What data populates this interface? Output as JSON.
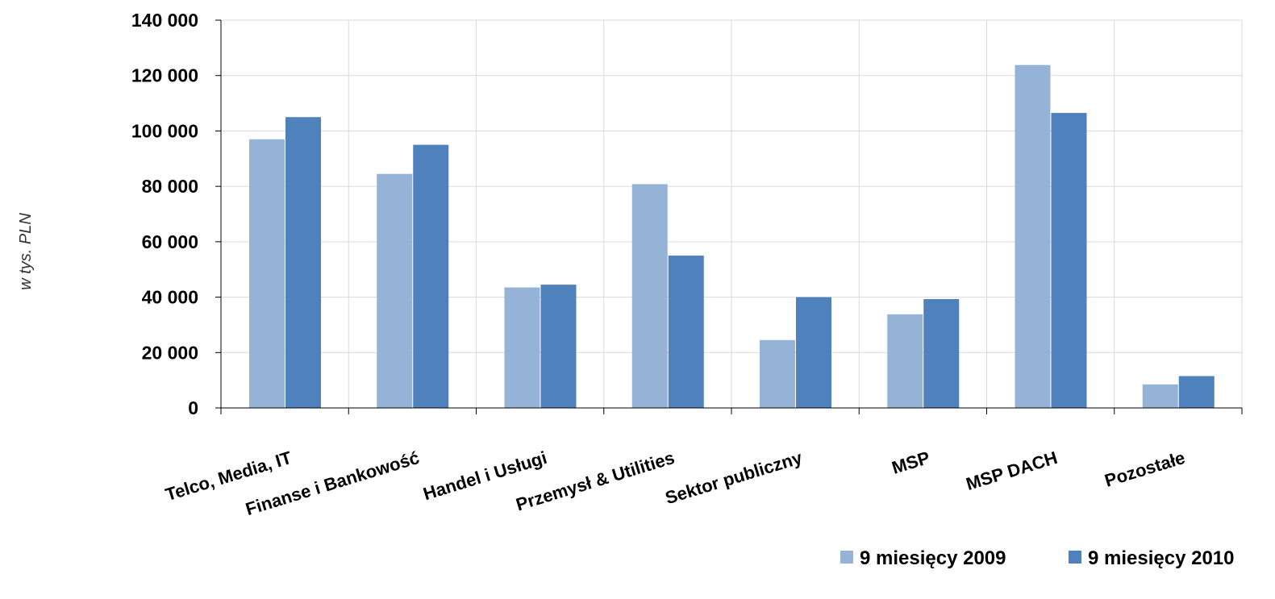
{
  "chart_data": {
    "type": "bar",
    "title": "",
    "xlabel": "",
    "ylabel": "w tys. PLN",
    "categories": [
      "Telco, Media, IT",
      "Finanse i Bankowość",
      "Handel i Usługi",
      "Przemysł & Utilities",
      "Sektor publiczny",
      "MSP",
      "MSP DACH",
      "Pozostałe"
    ],
    "series": [
      {
        "name": "9 miesięcy 2009",
        "color": "#95B3D7",
        "values": [
          97000,
          84500,
          43500,
          80800,
          24500,
          33800,
          123800,
          8500
        ]
      },
      {
        "name": "9 miesięcy 2010",
        "color": "#4F81BD",
        "values": [
          105000,
          95000,
          44500,
          55000,
          40000,
          39300,
          106500,
          11500
        ]
      }
    ],
    "ylim": [
      0,
      140000
    ],
    "yticks": [
      0,
      20000,
      40000,
      60000,
      80000,
      100000,
      120000,
      140000
    ],
    "ytick_labels": [
      "0",
      "20 000",
      "40 000",
      "60 000",
      "80 000",
      "100 000",
      "120 000",
      "140 000"
    ],
    "grid": true,
    "legend_position": "bottom-right",
    "gridline_color": "#D9D9D9"
  }
}
